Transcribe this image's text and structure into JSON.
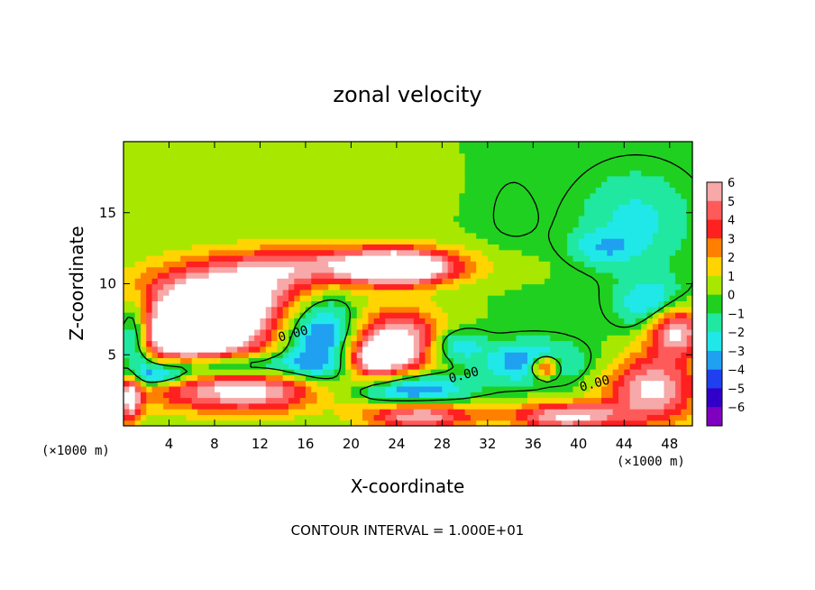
{
  "chart_data": {
    "type": "heatmap",
    "title": "zonal velocity",
    "xlabel": "X-coordinate",
    "ylabel": "Z-coordinate",
    "x_unit_label": "(×1000 m)",
    "x_unit_label_right": "(×1000 m)",
    "xlim": [
      0,
      50
    ],
    "ylim": [
      0,
      20
    ],
    "x_ticks": [
      4,
      8,
      12,
      16,
      20,
      24,
      28,
      32,
      36,
      40,
      44,
      48
    ],
    "x_tick_labels": [
      "4",
      "8",
      "12",
      "16",
      "20",
      "24",
      "28",
      "32",
      "36",
      "40",
      "44",
      "48"
    ],
    "y_ticks": [
      5,
      10,
      15
    ],
    "y_tick_labels": [
      "5",
      "10",
      "15"
    ],
    "colorbar": {
      "levels": [
        6,
        5,
        4,
        3,
        2,
        1,
        0,
        -1,
        -2,
        -3,
        -4,
        -5,
        -6
      ],
      "labels": [
        "6",
        "5",
        "4",
        "3",
        "2",
        "1",
        "0",
        "−1",
        "−2",
        "−3",
        "−4",
        "−5",
        "−6"
      ],
      "colors": [
        "#f7a8a8",
        "#ff5a5a",
        "#ff2020",
        "#ff8000",
        "#ffd400",
        "#a8e800",
        "#20d020",
        "#20e8a0",
        "#20e8e8",
        "#20a0f0",
        "#2040f0",
        "#3000c8",
        "#8000c0"
      ],
      "over_color": "#ffffff"
    },
    "contour_labels": [
      {
        "text": "0.00",
        "x": 15,
        "z": 6.2
      },
      {
        "text": "0.00",
        "x": 30,
        "z": 3.3
      },
      {
        "text": "0.00",
        "x": 41.5,
        "z": 2.7
      }
    ],
    "blobs": [
      {
        "x": 9,
        "z": 9.5,
        "rx": 9,
        "rz": 1.8,
        "v": 4.5
      },
      {
        "x": 19,
        "z": 11.3,
        "rx": 11,
        "rz": 1.4,
        "v": 5.5
      },
      {
        "x": 24.5,
        "z": 11.2,
        "rx": 4,
        "rz": 1.1,
        "v": 7
      },
      {
        "x": 8.5,
        "z": 7.2,
        "rx": 6,
        "rz": 2.8,
        "v": 7.5
      },
      {
        "x": 5,
        "z": 6.5,
        "rx": 4,
        "rz": 1.8,
        "v": 7
      },
      {
        "x": 17.5,
        "z": 6.0,
        "rx": 3.5,
        "rz": 3.5,
        "v": -5.5
      },
      {
        "x": 24,
        "z": 6.0,
        "rx": 4.5,
        "rz": 2.2,
        "v": 7
      },
      {
        "x": 22,
        "z": 4.6,
        "rx": 3,
        "rz": 1.4,
        "v": 5
      },
      {
        "x": 11,
        "z": 2.5,
        "rx": 9,
        "rz": 1.6,
        "v": 6.5
      },
      {
        "x": 9,
        "z": 4.2,
        "rx": 7,
        "rz": 0.9,
        "v": -5
      },
      {
        "x": 25,
        "z": 2.5,
        "rx": 5,
        "rz": 1.3,
        "v": -5
      },
      {
        "x": 26,
        "z": 0.8,
        "rx": 5,
        "rz": 1.0,
        "v": 6.5
      },
      {
        "x": 29,
        "z": 5.7,
        "rx": 2.5,
        "rz": 1.2,
        "v": -4
      },
      {
        "x": 36,
        "z": 4.5,
        "rx": 4,
        "rz": 1.4,
        "v": -4.5
      },
      {
        "x": 37,
        "z": 4.2,
        "rx": 1.4,
        "rz": 0.8,
        "v": 7
      },
      {
        "x": 39,
        "z": 0.7,
        "rx": 5,
        "rz": 1.0,
        "v": 6.5
      },
      {
        "x": 46.5,
        "z": 2.6,
        "rx": 4,
        "rz": 2.4,
        "v": 6.5
      },
      {
        "x": 48.5,
        "z": 6.8,
        "rx": 2.5,
        "rz": 1.8,
        "v": 7
      },
      {
        "x": 46.5,
        "z": 8.5,
        "rx": 3,
        "rz": 1.8,
        "v": -3.5
      },
      {
        "x": 45,
        "z": 14.5,
        "rx": 5,
        "rz": 3.5,
        "v": -2.2
      },
      {
        "x": 42,
        "z": 12.5,
        "rx": 3,
        "rz": 1.2,
        "v": -2
      },
      {
        "x": 1,
        "z": 6.5,
        "rx": 1.5,
        "rz": 2.5,
        "v": -5
      },
      {
        "x": 15,
        "z": 17,
        "rx": 12,
        "rz": 4,
        "v": 0.8
      },
      {
        "x": 34,
        "z": 15,
        "rx": 3,
        "rz": 4,
        "v": -0.6
      },
      {
        "x": 0.6,
        "z": 2,
        "rx": 1,
        "rz": 2,
        "v": 6
      },
      {
        "x": 3,
        "z": 3.5,
        "rx": 3,
        "rz": 0.7,
        "v": -4
      }
    ]
  },
  "footer": {
    "contour_interval": "CONTOUR INTERVAL = 1.000E+01"
  }
}
